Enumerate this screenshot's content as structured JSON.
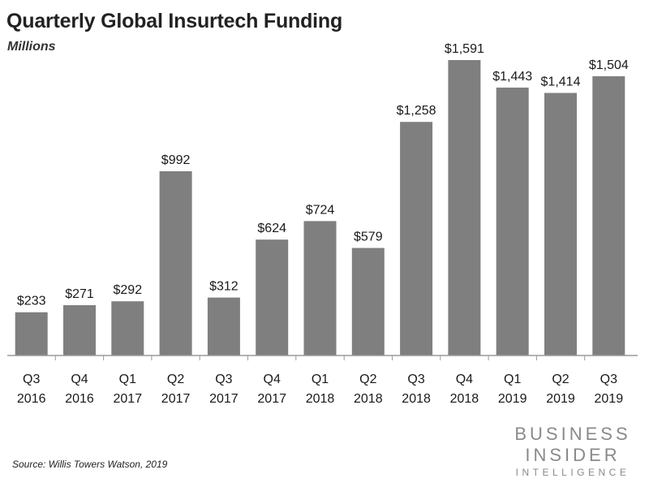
{
  "header": {
    "title": "Quarterly Global Insurtech Funding",
    "subtitle": "Millions"
  },
  "footer": {
    "source": "Source: Willis Towers Watson, 2019",
    "brand_line1": "BUSINESS",
    "brand_line2": "INSIDER",
    "brand_line3": "INTELLIGENCE"
  },
  "colors": {
    "bar": "#7f7f7f",
    "axis": "#9a9a9a",
    "text": "#1a1a1a",
    "brand": "#8a8a8a"
  },
  "chart_data": {
    "type": "bar",
    "title": "Quarterly Global Insurtech Funding",
    "subtitle": "Millions",
    "categories": [
      [
        "Q3",
        "2016"
      ],
      [
        "Q4",
        "2016"
      ],
      [
        "Q1",
        "2017"
      ],
      [
        "Q2",
        "2017"
      ],
      [
        "Q3",
        "2017"
      ],
      [
        "Q4",
        "2017"
      ],
      [
        "Q1",
        "2018"
      ],
      [
        "Q2",
        "2018"
      ],
      [
        "Q3",
        "2018"
      ],
      [
        "Q4",
        "2018"
      ],
      [
        "Q1",
        "2019"
      ],
      [
        "Q2",
        "2019"
      ],
      [
        "Q3",
        "2019"
      ]
    ],
    "values": [
      233,
      271,
      292,
      992,
      312,
      624,
      724,
      579,
      1258,
      1591,
      1443,
      1414,
      1504
    ],
    "data_labels": [
      "$233",
      "$271",
      "$292",
      "$992",
      "$312",
      "$624",
      "$724",
      "$579",
      "$1,258",
      "$1,591",
      "$1,443",
      "$1,414",
      "$1,504"
    ],
    "ylim": [
      0,
      1591
    ],
    "grid": false,
    "legend": "none"
  }
}
